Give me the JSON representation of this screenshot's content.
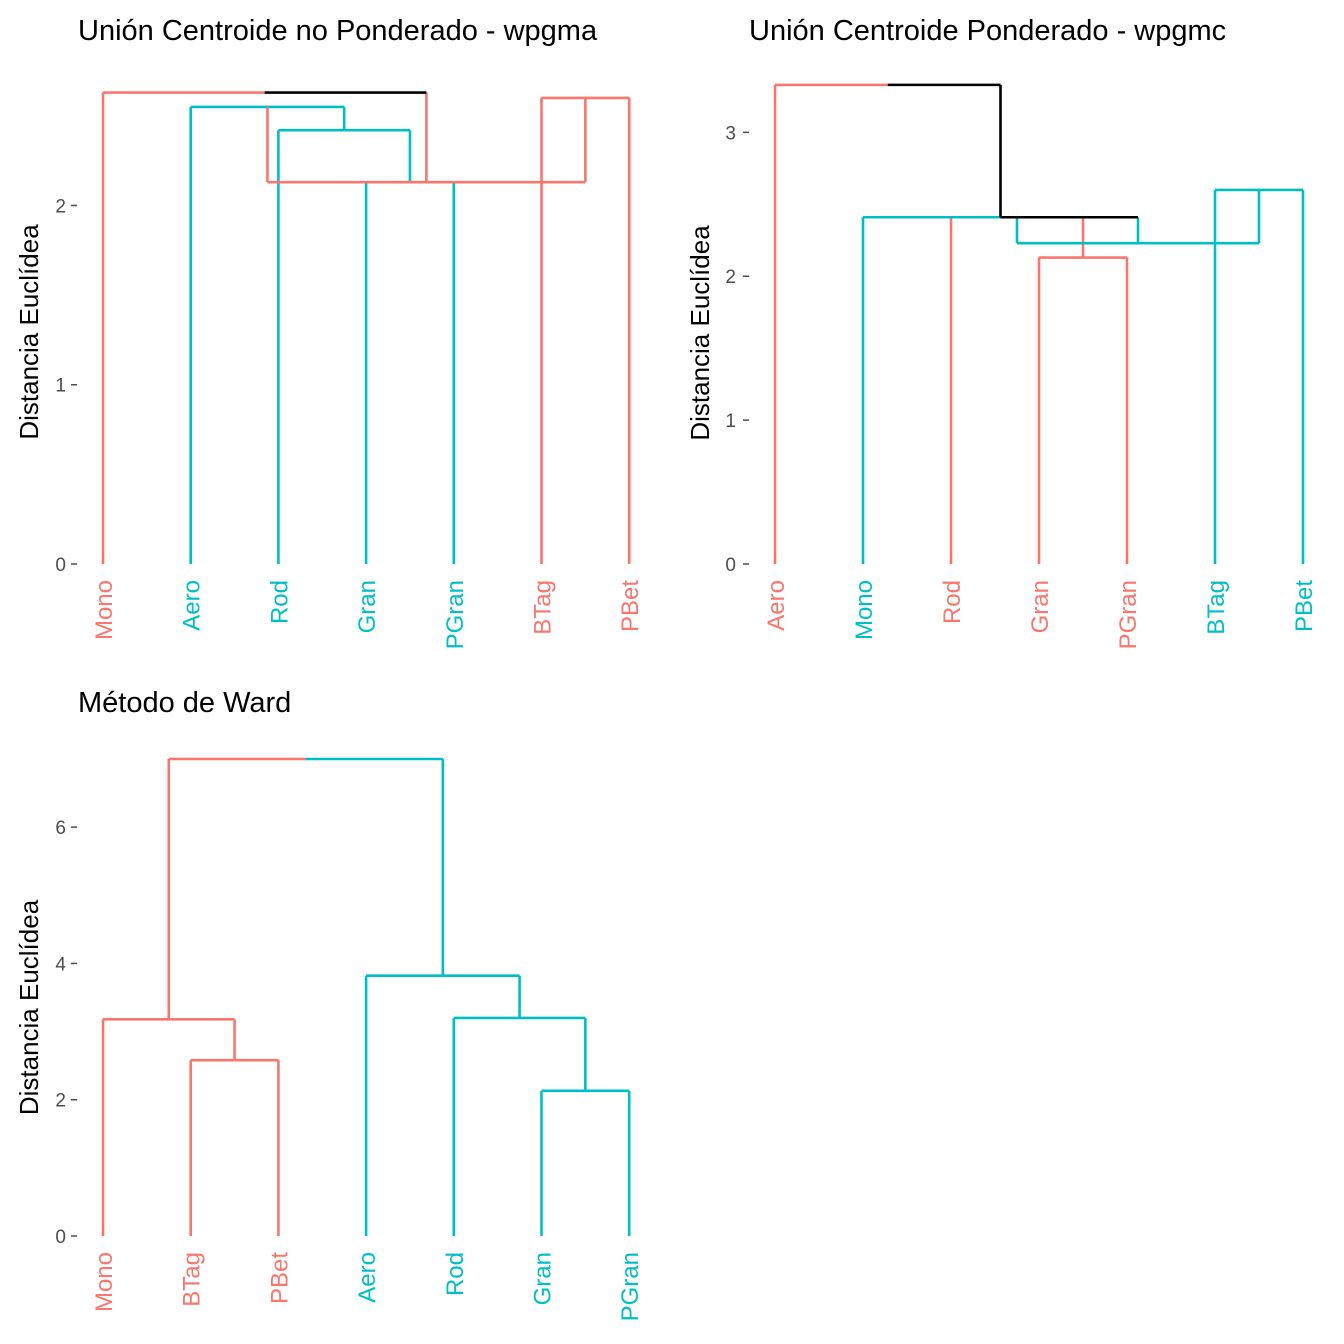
{
  "colors": {
    "red": "#F8766D",
    "teal": "#00BFC4",
    "black": "#000000",
    "tick": "#4d4d4d"
  },
  "chart_data": [
    {
      "type": "dendrogram",
      "title": "Unión Centroide no Ponderado - wpgma",
      "ylabel": "Distancia Euclídea",
      "ylim": [
        0,
        2.7
      ],
      "yticks": [
        0,
        1,
        2
      ],
      "leaves": [
        {
          "label": "Mono",
          "color": "red"
        },
        {
          "label": "Aero",
          "color": "teal"
        },
        {
          "label": "Rod",
          "color": "teal"
        },
        {
          "label": "Gran",
          "color": "teal"
        },
        {
          "label": "PGran",
          "color": "teal"
        },
        {
          "label": "BTag",
          "color": "red"
        },
        {
          "label": "PBet",
          "color": "red"
        }
      ],
      "merges": [
        {
          "left": {
            "leaf": 3
          },
          "right": {
            "leaf": 4
          },
          "height": 2.13,
          "color": "teal"
        },
        {
          "left": {
            "leaf": 2
          },
          "right": {
            "node": 0
          },
          "height": 2.42,
          "color": "teal"
        },
        {
          "left": {
            "leaf": 1
          },
          "right": {
            "node": 1
          },
          "height": 2.55,
          "color": "teal"
        },
        {
          "left": {
            "leaf": 5
          },
          "right": {
            "leaf": 6
          },
          "height": 2.6,
          "color": "red"
        },
        {
          "left": {
            "node": 2
          },
          "right": {
            "node": 3
          },
          "height": 2.13,
          "color": "red"
        },
        {
          "left": {
            "leaf": 0
          },
          "right": {
            "node": 4
          },
          "height": 2.63,
          "color": "mixed"
        }
      ]
    },
    {
      "type": "dendrogram",
      "title": "Unión Centroide Ponderado - wpgmc",
      "ylabel": "Distancia Euclídea",
      "ylim": [
        0,
        3.35
      ],
      "yticks": [
        0,
        1,
        2,
        3
      ],
      "leaves": [
        {
          "label": "Aero",
          "color": "red"
        },
        {
          "label": "Mono",
          "color": "teal"
        },
        {
          "label": "Rod",
          "color": "red"
        },
        {
          "label": "Gran",
          "color": "red"
        },
        {
          "label": "PGran",
          "color": "red"
        },
        {
          "label": "BTag",
          "color": "teal"
        },
        {
          "label": "PBet",
          "color": "teal"
        }
      ],
      "merges": [
        {
          "left": {
            "leaf": 3
          },
          "right": {
            "leaf": 4
          },
          "height": 2.13,
          "color": "red"
        },
        {
          "left": {
            "leaf": 2
          },
          "right": {
            "node": 0
          },
          "height": 2.41,
          "color": "red"
        },
        {
          "left": {
            "leaf": 5
          },
          "right": {
            "leaf": 6
          },
          "height": 2.6,
          "color": "teal"
        },
        {
          "left": {
            "node": 1
          },
          "right": {
            "node": 2
          },
          "height": 2.23,
          "color": "teal"
        },
        {
          "left": {
            "leaf": 1
          },
          "right": {
            "node": 3
          },
          "height": 2.41,
          "color": "mixed"
        },
        {
          "left": {
            "leaf": 0
          },
          "right": {
            "node": 4
          },
          "height": 3.33,
          "color": "mixed"
        }
      ]
    },
    {
      "type": "dendrogram",
      "title": "Método de Ward",
      "ylabel": "Distancia Euclídea",
      "ylim": [
        0,
        7.0
      ],
      "yticks": [
        0,
        2,
        4,
        6
      ],
      "leaves": [
        {
          "label": "Mono",
          "color": "red"
        },
        {
          "label": "BTag",
          "color": "red"
        },
        {
          "label": "PBet",
          "color": "red"
        },
        {
          "label": "Aero",
          "color": "teal"
        },
        {
          "label": "Rod",
          "color": "teal"
        },
        {
          "label": "Gran",
          "color": "teal"
        },
        {
          "label": "PGran",
          "color": "teal"
        }
      ],
      "merges": [
        {
          "left": {
            "leaf": 1
          },
          "right": {
            "leaf": 2
          },
          "height": 2.58,
          "color": "red"
        },
        {
          "left": {
            "leaf": 0
          },
          "right": {
            "node": 0
          },
          "height": 3.18,
          "color": "red"
        },
        {
          "left": {
            "leaf": 5
          },
          "right": {
            "leaf": 6
          },
          "height": 2.13,
          "color": "teal"
        },
        {
          "left": {
            "leaf": 4
          },
          "right": {
            "node": 2
          },
          "height": 3.2,
          "color": "teal"
        },
        {
          "left": {
            "leaf": 3
          },
          "right": {
            "node": 3
          },
          "height": 3.82,
          "color": "teal"
        },
        {
          "left": {
            "node": 1
          },
          "right": {
            "node": 4
          },
          "height": 7.0,
          "color": "split"
        }
      ]
    }
  ]
}
